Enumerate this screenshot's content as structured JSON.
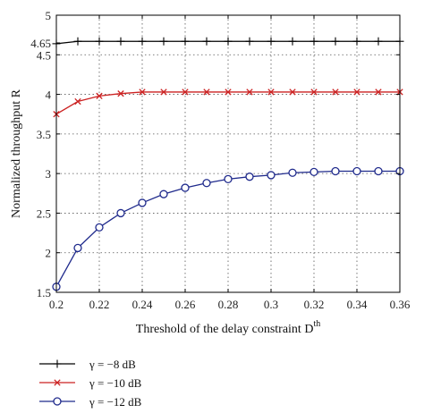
{
  "chart_data": {
    "type": "line",
    "xlabel": "Threshold of the delay constraint D",
    "xlabel_superscript": "th",
    "ylabel": "Normalized throughput R",
    "xlim": [
      0.2,
      0.36
    ],
    "ylim": [
      1.5,
      5
    ],
    "x_ticks": [
      0.2,
      0.22,
      0.24,
      0.26,
      0.28,
      0.3,
      0.32,
      0.34,
      0.36
    ],
    "x_tick_labels": [
      "0.2",
      "0.22",
      "0.24",
      "0.26",
      "0.28",
      "0.3",
      "0.32",
      "0.34",
      "0.36"
    ],
    "y_ticks": [
      1.5,
      2,
      2.5,
      3,
      3.5,
      4,
      4.5,
      5
    ],
    "y_tick_labels": [
      "1.5",
      "2",
      "2.5",
      "3",
      "3.5",
      "4",
      "4.5",
      "5"
    ],
    "extra_y_tick": {
      "value": 4.65,
      "label": "4.65"
    },
    "grid": true,
    "legend_position": "below",
    "x": [
      0.2,
      0.21,
      0.22,
      0.23,
      0.24,
      0.25,
      0.26,
      0.27,
      0.28,
      0.29,
      0.3,
      0.31,
      0.32,
      0.33,
      0.34,
      0.35,
      0.36
    ],
    "series": [
      {
        "name": "γ = −8 dB",
        "color": "#000000",
        "marker": "plus",
        "values": [
          4.64,
          4.67,
          4.67,
          4.67,
          4.67,
          4.67,
          4.67,
          4.67,
          4.67,
          4.67,
          4.67,
          4.67,
          4.67,
          4.67,
          4.67,
          4.67,
          4.67
        ]
      },
      {
        "name": "γ = −10 dB",
        "color": "#cc2222",
        "marker": "x",
        "values": [
          3.75,
          3.91,
          3.98,
          4.01,
          4.03,
          4.03,
          4.03,
          4.03,
          4.03,
          4.03,
          4.03,
          4.03,
          4.03,
          4.03,
          4.03,
          4.03,
          4.03
        ]
      },
      {
        "name": "γ = −12 dB",
        "color": "#1f2a8c",
        "marker": "circle",
        "values": [
          1.57,
          2.06,
          2.32,
          2.5,
          2.63,
          2.74,
          2.82,
          2.88,
          2.93,
          2.96,
          2.98,
          3.01,
          3.02,
          3.03,
          3.03,
          3.03,
          3.03
        ]
      }
    ]
  }
}
